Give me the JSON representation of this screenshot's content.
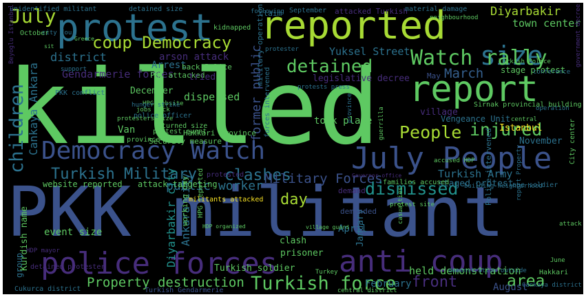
{
  "image": {
    "type": "word cloud",
    "background_color": "#000000",
    "frame_color": "#ffffff",
    "palette": [
      "#5ec962",
      "#a8db34",
      "#fde725",
      "#21918c",
      "#3b528b",
      "#472d7b",
      "#355f8d",
      "#2c728e"
    ]
  },
  "words": [
    {
      "id": "killed",
      "text": "killed",
      "color": "#5ec962"
    },
    {
      "id": "pkk-militant",
      "text": "PKK militant",
      "color": "#3b528b"
    },
    {
      "id": "reported",
      "text": "reported",
      "color": "#a8db34"
    },
    {
      "id": "protest",
      "text": "protest",
      "color": "#2c728e"
    },
    {
      "id": "report",
      "text": "report",
      "color": "#5ec962"
    },
    {
      "id": "police-forces",
      "text": "police forces",
      "color": "#472d7b"
    },
    {
      "id": "anti-coup",
      "text": "anti coup",
      "color": "#472d7b"
    },
    {
      "id": "july-people",
      "text": "July People",
      "color": "#3b528b"
    },
    {
      "id": "democracy-watch",
      "text": "Democracy Watch",
      "color": "#3b528b"
    },
    {
      "id": "size",
      "text": "size",
      "color": "#2c728e"
    },
    {
      "id": "watch-rally",
      "text": "Watch rally",
      "color": "#5ec962"
    },
    {
      "id": "coup-democracy",
      "text": "coup Democracy",
      "color": "#a8db34"
    },
    {
      "id": "july",
      "text": "July",
      "color": "#a8db34"
    },
    {
      "id": "children",
      "text": "children",
      "color": "#2c728e"
    },
    {
      "id": "detained",
      "text": "detained",
      "color": "#5ec962"
    },
    {
      "id": "people",
      "text": "People",
      "color": "#a8db34"
    },
    {
      "id": "injured",
      "text": "injured",
      "color": "#5ec962"
    },
    {
      "id": "turkish-military",
      "text": "Turkish Military",
      "color": "#2c728e"
    },
    {
      "id": "clashes",
      "text": "clashes",
      "color": "#2c728e"
    },
    {
      "id": "military-forces",
      "text": "Military Forces",
      "color": "#3b528b"
    },
    {
      "id": "dismissed",
      "text": "dismissed",
      "color": "#21918c"
    },
    {
      "id": "turkish-force",
      "text": "Turkish force",
      "color": "#5ec962"
    },
    {
      "id": "property-destruction",
      "text": "Property destruction",
      "color": "#5ec962"
    },
    {
      "id": "diyarbakir-caps",
      "text": "Diyarbakir",
      "color": "#a8db34"
    },
    {
      "id": "town-center",
      "text": "town center",
      "color": "#5ec962"
    },
    {
      "id": "march",
      "text": "March",
      "color": "#355f8d"
    },
    {
      "id": "yuksel-street",
      "text": "Yuksel Street",
      "color": "#2c728e"
    },
    {
      "id": "district",
      "text": "district",
      "color": "#2c728e"
    },
    {
      "id": "gendarmerie-forces",
      "text": "Gendarmerie forces",
      "color": "#472d7b"
    },
    {
      "id": "cankaya-ankara",
      "text": "Cankaya Ankara",
      "color": "#2c728e"
    },
    {
      "id": "arson-attack",
      "text": "arson attack",
      "color": "#472d7b"
    },
    {
      "id": "public-worker",
      "text": "public worker",
      "color": "#2c728e"
    },
    {
      "id": "day",
      "text": "day",
      "color": "#a8db34"
    },
    {
      "id": "ankara-city",
      "text": "Ankara city",
      "color": "#2c728e"
    },
    {
      "id": "diyarbakir-city",
      "text": "Diyarbakir city",
      "color": "#21918c"
    },
    {
      "id": "front",
      "text": "front",
      "color": "#472d7b"
    },
    {
      "id": "area",
      "text": "area",
      "color": "#5ec962"
    },
    {
      "id": "held-demonstration",
      "text": "held demonstration",
      "color": "#5ec962"
    },
    {
      "id": "vengeance-unit",
      "text": "Vengeance Unit",
      "color": "#2c728e"
    },
    {
      "id": "turkish-army",
      "text": "Turkish Army",
      "color": "#2c728e"
    },
    {
      "id": "former-public",
      "text": "former public",
      "color": "#3b528b"
    },
    {
      "id": "legislative-decree",
      "text": "legislative decree",
      "color": "#472d7b"
    },
    {
      "id": "took-place",
      "text": "took place",
      "color": "#5ec962"
    },
    {
      "id": "dispersed",
      "text": "dispersed",
      "color": "#5ec962"
    },
    {
      "id": "december",
      "text": "December",
      "color": "#5ec962"
    },
    {
      "id": "van",
      "text": "Van",
      "color": "#5ec962"
    },
    {
      "id": "arrest",
      "text": "Arrest",
      "color": "#2c728e"
    },
    {
      "id": "pkk-attacked",
      "text": "PKK attacked",
      "color": "#5ec962"
    },
    {
      "id": "tried",
      "text": "tried",
      "color": "#472d7b"
    },
    {
      "id": "back-police",
      "text": "back Police",
      "color": "#5ec962"
    },
    {
      "id": "april",
      "text": "April",
      "color": "#2c728e"
    },
    {
      "id": "january",
      "text": "January",
      "color": "#2c728e"
    },
    {
      "id": "february",
      "text": "February",
      "color": "#2c728e"
    },
    {
      "id": "august",
      "text": "August",
      "color": "#3b528b"
    },
    {
      "id": "november",
      "text": "November",
      "color": "#2c728e"
    },
    {
      "id": "istanbul",
      "text": "Istanbul",
      "color": "#fde725"
    },
    {
      "id": "turkish-soldier",
      "text": "Turkish soldier",
      "color": "#5ec962"
    },
    {
      "id": "event-size",
      "text": "event size",
      "color": "#5ec962"
    },
    {
      "id": "kurdish-name",
      "text": "Kurdish name",
      "color": "#5ec962"
    },
    {
      "id": "prisoner",
      "text": "prisoner",
      "color": "#5ec962"
    },
    {
      "id": "demand",
      "text": "demand",
      "color": "#472d7b"
    },
    {
      "id": "demanded",
      "text": "demanded",
      "color": "#3b528b"
    },
    {
      "id": "clash",
      "text": "clash",
      "color": "#5ec962"
    },
    {
      "id": "website-reported",
      "text": "website reported",
      "color": "#5ec962"
    },
    {
      "id": "attack-targeting",
      "text": "attack targeting",
      "color": "#5ec962"
    },
    {
      "id": "stage-protest",
      "text": "stage protest",
      "color": "#5ec962"
    },
    {
      "id": "staged-protest",
      "text": "staged protest",
      "color": "#2c728e"
    },
    {
      "id": "turkish-police",
      "text": "Turkish Police",
      "color": "#5ec962"
    },
    {
      "id": "may",
      "text": "May",
      "color": "#3b528b"
    },
    {
      "id": "village",
      "text": "village",
      "color": "#472d7b"
    },
    {
      "id": "sirnak-provincial-building",
      "text": "Sirnak provincial building",
      "color": "#5ec962"
    },
    {
      "id": "families-accused",
      "text": "families accused",
      "color": "#5ec962"
    },
    {
      "id": "governor-office",
      "text": "Governor office",
      "color": "#472d7b"
    },
    {
      "id": "hakkari-province",
      "text": "Hakkari province",
      "color": "#5ec962"
    },
    {
      "id": "security-measure",
      "text": "Security measure",
      "color": "#5ec962"
    },
    {
      "id": "sirnak-province",
      "text": "Sirnak province",
      "color": "#5ec962"
    },
    {
      "id": "militants-attacked",
      "text": "militants attacked",
      "color": "#fde725"
    },
    {
      "id": "protested",
      "text": "protested",
      "color": "#472d7b"
    },
    {
      "id": "unidentified-militant",
      "text": "unidentified militant",
      "color": "#2c728e"
    },
    {
      "id": "detained-size",
      "text": "detained size",
      "color": "#2c728e"
    },
    {
      "id": "september",
      "text": "September",
      "color": "#2c728e"
    },
    {
      "id": "attacked-turkish",
      "text": "attacked Turkish",
      "color": "#472d7b"
    },
    {
      "id": "material-damage",
      "text": "material damage",
      "color": "#2c728e"
    },
    {
      "id": "kidnapped",
      "text": "kidnapped",
      "color": "#5ec962"
    },
    {
      "id": "claim",
      "text": "claim",
      "color": "#2c728e"
    },
    {
      "id": "neighbourhood",
      "text": "neighbourhood",
      "color": "#5ec962"
    },
    {
      "id": "october",
      "text": "October",
      "color": "#5ec962"
    },
    {
      "id": "city-four",
      "text": "city Four",
      "color": "#2c728e"
    },
    {
      "id": "pkk-conflict",
      "text": "PKK conflict",
      "color": "#2c728e"
    },
    {
      "id": "support",
      "text": "support",
      "color": "#2c728e"
    },
    {
      "id": "hpg-website",
      "text": "HPG website",
      "color": "#5ec962"
    },
    {
      "id": "police-officer",
      "text": "police officer",
      "color": "#2c728e"
    },
    {
      "id": "jobs-back",
      "text": "jobs back",
      "color": "#5ec962"
    },
    {
      "id": "hunger-strike",
      "text": "hunger strike",
      "color": "#2c728e"
    },
    {
      "id": "returned-size",
      "text": "returned size",
      "color": "#5ec962"
    },
    {
      "id": "protest-event",
      "text": "protest event",
      "color": "#5ec962"
    },
    {
      "id": "military-operation",
      "text": "military operation",
      "color": "#2c728e"
    },
    {
      "id": "forces-intervened",
      "text": "forces intervened",
      "color": "#2c728e"
    },
    {
      "id": "protesters-size",
      "text": "protesters size",
      "color": "#5ec962"
    },
    {
      "id": "working-day",
      "text": "working day",
      "color": "#5ec962"
    },
    {
      "id": "hpg-reported",
      "text": "HPG reported",
      "color": "#5ec962"
    },
    {
      "id": "hdp-mayor",
      "text": "HDP mayor",
      "color": "#472d7b"
    },
    {
      "id": "hdp-organized",
      "text": "HDP organized",
      "color": "#5ec962"
    },
    {
      "id": "detained-protester",
      "text": "detained protester",
      "color": "#472d7b"
    },
    {
      "id": "group",
      "text": "group",
      "color": "#2c728e"
    },
    {
      "id": "cukurca-district",
      "text": "Cukurca district",
      "color": "#2c728e"
    },
    {
      "id": "beyoglu-istanbul",
      "text": "Beyoglu Istanbul",
      "color": "#472d7b"
    },
    {
      "id": "protester",
      "text": "protester",
      "color": "#2c728e"
    },
    {
      "id": "one-soldier",
      "text": "one soldier",
      "color": "#2c728e"
    },
    {
      "id": "city-center",
      "text": "City center",
      "color": "#5ec962"
    },
    {
      "id": "government-decree",
      "text": "government decree",
      "color": "#472d7b"
    },
    {
      "id": "police-intervened",
      "text": "Police intervened",
      "color": "#2c728e"
    },
    {
      "id": "report-property",
      "text": "report Property",
      "color": "#2c728e"
    },
    {
      "id": "accused-hdp",
      "text": "accused HDP",
      "color": "#5ec962"
    },
    {
      "id": "june",
      "text": "June",
      "color": "#5ec962"
    },
    {
      "id": "attack",
      "text": "attack",
      "color": "#5ec962"
    },
    {
      "id": "hakkari",
      "text": "Hakkari",
      "color": "#5ec962"
    },
    {
      "id": "central-district",
      "text": "central district",
      "color": "#5ec962"
    },
    {
      "id": "demonstration-outside",
      "text": "demonstration outside",
      "color": "#2c728e"
    },
    {
      "id": "turkish-gendarmerie",
      "text": "Turkish Gendarmerie",
      "color": "#3b528b"
    },
    {
      "id": "following",
      "text": "following",
      "color": "#2c728e"
    },
    {
      "id": "turkey",
      "text": "Turkey",
      "color": "#5ec962"
    },
    {
      "id": "protests-press",
      "text": "protests press",
      "color": "#2c728e"
    },
    {
      "id": "building-neighborhood",
      "text": "building neighborhood",
      "color": "#2c728e"
    },
    {
      "id": "cankaya-district",
      "text": "Cankaya district",
      "color": "#2c728e"
    },
    {
      "id": "village-guard",
      "text": "village guard",
      "color": "#5ec962"
    },
    {
      "id": "protest-site",
      "text": "protest site",
      "color": "#5ec962"
    },
    {
      "id": "province",
      "text": "province",
      "color": "#2c728e"
    },
    {
      "id": "guerrilla",
      "text": "guerrilla",
      "color": "#5ec962"
    },
    {
      "id": "central",
      "text": "central",
      "color": "#5ec962"
    },
    {
      "id": "operation",
      "text": "operation",
      "color": "#2c728e"
    },
    {
      "id": "casualties",
      "text": "casualties",
      "color": "#5ec962"
    },
    {
      "id": "greece",
      "text": "Greece",
      "color": "#5ec962"
    },
    {
      "id": "sit",
      "text": "sit",
      "color": "#5ec962"
    },
    {
      "id": "conference",
      "text": "conference",
      "color": "#2c728e"
    }
  ]
}
